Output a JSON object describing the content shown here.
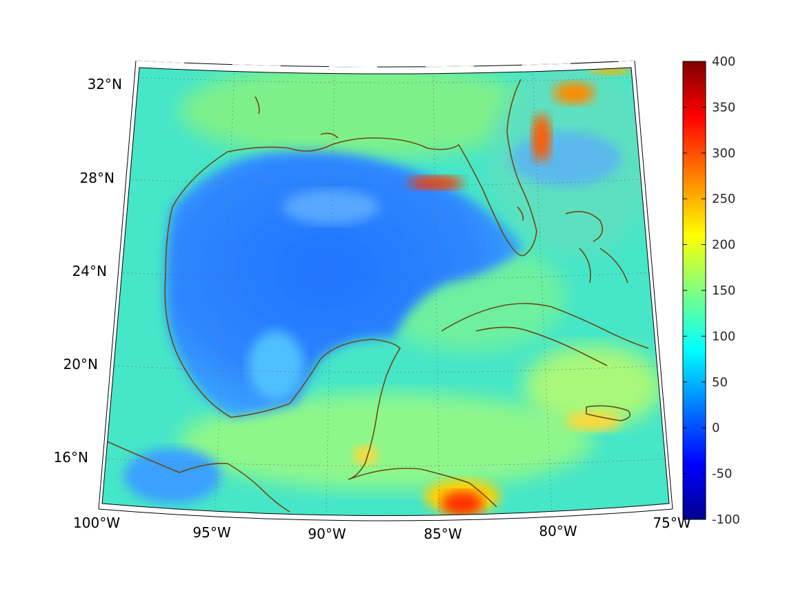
{
  "map": {
    "projection": "conic",
    "longitude_ticks": [
      "100°W",
      "95°W",
      "90°W",
      "85°W",
      "80°W",
      "75°W"
    ],
    "latitude_ticks": [
      "16°N",
      "20°N",
      "24°N",
      "28°N",
      "32°N"
    ],
    "grid": "dotted",
    "coastline_color": "#6b4a10",
    "frame": "black-white-dashed"
  },
  "colorbar": {
    "colormap": "jet",
    "range": [
      -100,
      400
    ],
    "ticks": [
      "400",
      "350",
      "300",
      "250",
      "200",
      "150",
      "100",
      "50",
      "0",
      "-50",
      "-100"
    ],
    "colors": [
      "#00008f",
      "#0000ff",
      "#0080ff",
      "#00ffff",
      "#80ff80",
      "#ffff00",
      "#ff8000",
      "#ff0000",
      "#800000"
    ]
  }
}
